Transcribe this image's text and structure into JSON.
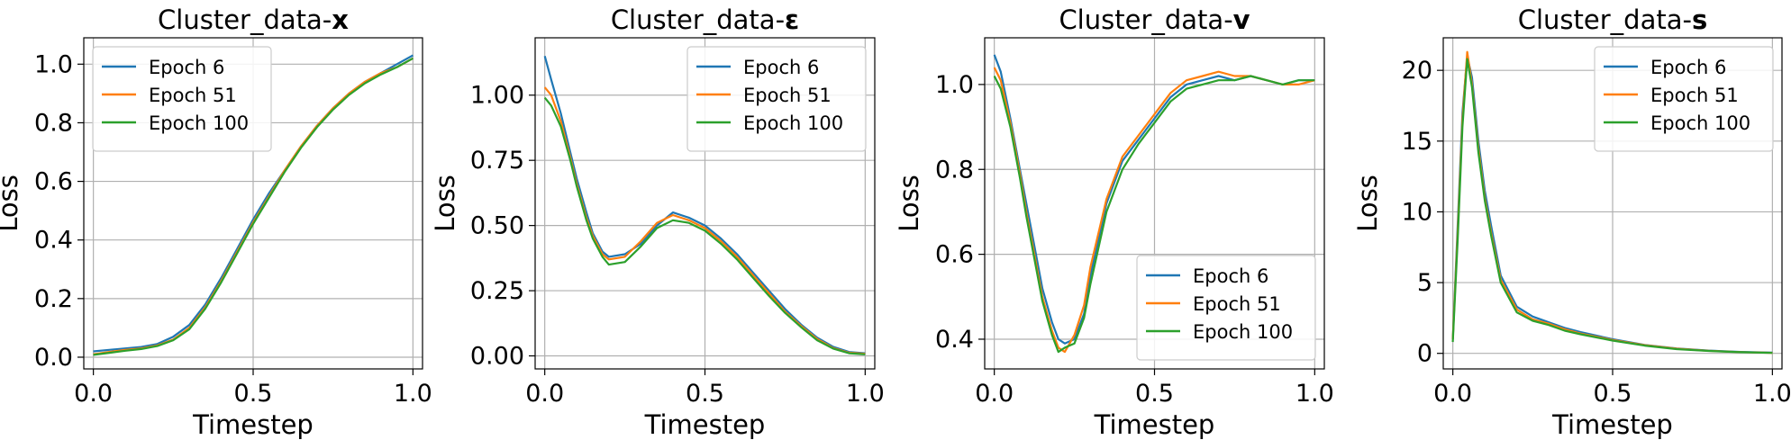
{
  "chart_data": [
    {
      "type": "line",
      "title_prefix": "Cluster_data-",
      "title_symbol": "x",
      "xlabel": "Timestep",
      "ylabel": "Loss",
      "xlim": [
        -0.03,
        1.03
      ],
      "ylim": [
        -0.04,
        1.09
      ],
      "xticks": [
        0.0,
        0.5,
        1.0
      ],
      "xtick_labels": [
        "0.0",
        "0.5",
        "1.0"
      ],
      "yticks": [
        0.0,
        0.2,
        0.4,
        0.6,
        0.8,
        1.0
      ],
      "ytick_labels": [
        "0.0",
        "0.2",
        "0.4",
        "0.6",
        "0.8",
        "1.0"
      ],
      "grid": true,
      "legend_position": "top-left",
      "x": [
        0,
        0.05,
        0.1,
        0.15,
        0.2,
        0.25,
        0.3,
        0.35,
        0.4,
        0.45,
        0.5,
        0.55,
        0.6,
        0.65,
        0.7,
        0.75,
        0.8,
        0.85,
        0.9,
        0.95,
        1.0
      ],
      "series": [
        {
          "name": "Epoch 6",
          "color": "#1f77b4",
          "values": [
            0.02,
            0.025,
            0.03,
            0.035,
            0.045,
            0.07,
            0.11,
            0.18,
            0.27,
            0.37,
            0.47,
            0.56,
            0.64,
            0.72,
            0.79,
            0.85,
            0.9,
            0.94,
            0.97,
            1.0,
            1.03
          ]
        },
        {
          "name": "Epoch 51",
          "color": "#ff7f0e",
          "values": [
            0.01,
            0.018,
            0.025,
            0.03,
            0.04,
            0.06,
            0.1,
            0.17,
            0.26,
            0.36,
            0.46,
            0.55,
            0.64,
            0.72,
            0.79,
            0.85,
            0.9,
            0.94,
            0.97,
            0.99,
            1.02
          ]
        },
        {
          "name": "Epoch 100",
          "color": "#2ca02c",
          "values": [
            0.008,
            0.015,
            0.022,
            0.028,
            0.038,
            0.058,
            0.095,
            0.165,
            0.255,
            0.355,
            0.455,
            0.545,
            0.635,
            0.715,
            0.785,
            0.845,
            0.895,
            0.935,
            0.965,
            0.99,
            1.02
          ]
        }
      ]
    },
    {
      "type": "line",
      "title_prefix": "Cluster_data-",
      "title_symbol": "ε",
      "xlabel": "Timestep",
      "ylabel": "Loss",
      "xlim": [
        -0.03,
        1.03
      ],
      "ylim": [
        -0.05,
        1.22
      ],
      "xticks": [
        0.0,
        0.5,
        1.0
      ],
      "xtick_labels": [
        "0.0",
        "0.5",
        "1.0"
      ],
      "yticks": [
        0.0,
        0.25,
        0.5,
        0.75,
        1.0
      ],
      "ytick_labels": [
        "0.00",
        "0.25",
        "0.50",
        "0.75",
        "1.00"
      ],
      "grid": true,
      "legend_position": "top-right",
      "x": [
        0,
        0.02,
        0.05,
        0.08,
        0.1,
        0.13,
        0.15,
        0.18,
        0.2,
        0.25,
        0.3,
        0.35,
        0.4,
        0.45,
        0.5,
        0.55,
        0.6,
        0.65,
        0.7,
        0.75,
        0.8,
        0.85,
        0.9,
        0.95,
        1.0
      ],
      "series": [
        {
          "name": "Epoch 6",
          "color": "#1f77b4",
          "values": [
            1.15,
            1.06,
            0.93,
            0.78,
            0.68,
            0.55,
            0.47,
            0.4,
            0.38,
            0.39,
            0.43,
            0.5,
            0.55,
            0.53,
            0.5,
            0.45,
            0.39,
            0.32,
            0.25,
            0.18,
            0.12,
            0.07,
            0.035,
            0.015,
            0.01
          ]
        },
        {
          "name": "Epoch 51",
          "color": "#ff7f0e",
          "values": [
            1.03,
            1.0,
            0.9,
            0.76,
            0.66,
            0.53,
            0.46,
            0.39,
            0.37,
            0.38,
            0.44,
            0.51,
            0.54,
            0.52,
            0.49,
            0.44,
            0.38,
            0.31,
            0.24,
            0.17,
            0.115,
            0.065,
            0.03,
            0.012,
            0.008
          ]
        },
        {
          "name": "Epoch 100",
          "color": "#2ca02c",
          "values": [
            0.99,
            0.96,
            0.88,
            0.75,
            0.65,
            0.52,
            0.45,
            0.38,
            0.35,
            0.36,
            0.42,
            0.49,
            0.52,
            0.51,
            0.48,
            0.43,
            0.37,
            0.3,
            0.23,
            0.165,
            0.11,
            0.06,
            0.028,
            0.01,
            0.006
          ]
        }
      ]
    },
    {
      "type": "line",
      "title_prefix": "Cluster_data-",
      "title_symbol": "v",
      "xlabel": "Timestep",
      "ylabel": "Loss",
      "xlim": [
        -0.03,
        1.03
      ],
      "ylim": [
        0.33,
        1.11
      ],
      "xticks": [
        0.0,
        0.5,
        1.0
      ],
      "xtick_labels": [
        "0.0",
        "0.5",
        "1.0"
      ],
      "yticks": [
        0.4,
        0.6,
        0.8,
        1.0
      ],
      "ytick_labels": [
        "0.4",
        "0.6",
        "0.8",
        "1.0"
      ],
      "grid": true,
      "legend_position": "bottom-right",
      "x": [
        0,
        0.02,
        0.05,
        0.08,
        0.1,
        0.13,
        0.15,
        0.18,
        0.2,
        0.22,
        0.25,
        0.28,
        0.3,
        0.35,
        0.4,
        0.45,
        0.5,
        0.55,
        0.6,
        0.65,
        0.7,
        0.75,
        0.8,
        0.85,
        0.9,
        0.95,
        1.0
      ],
      "series": [
        {
          "name": "Epoch 6",
          "color": "#1f77b4",
          "values": [
            1.07,
            1.03,
            0.92,
            0.8,
            0.72,
            0.6,
            0.52,
            0.44,
            0.4,
            0.39,
            0.4,
            0.46,
            0.55,
            0.72,
            0.82,
            0.87,
            0.92,
            0.97,
            1.0,
            1.01,
            1.02,
            1.01,
            1.02,
            1.01,
            1.0,
            1.01,
            1.01
          ]
        },
        {
          "name": "Epoch 51",
          "color": "#ff7f0e",
          "values": [
            1.04,
            1.01,
            0.91,
            0.79,
            0.7,
            0.58,
            0.5,
            0.42,
            0.38,
            0.37,
            0.41,
            0.48,
            0.57,
            0.73,
            0.83,
            0.88,
            0.93,
            0.98,
            1.01,
            1.02,
            1.03,
            1.02,
            1.02,
            1.01,
            1.0,
            1.0,
            1.01
          ]
        },
        {
          "name": "Epoch 100",
          "color": "#2ca02c",
          "values": [
            1.02,
            0.99,
            0.9,
            0.78,
            0.69,
            0.57,
            0.49,
            0.41,
            0.37,
            0.38,
            0.39,
            0.45,
            0.53,
            0.7,
            0.8,
            0.86,
            0.91,
            0.96,
            0.99,
            1.0,
            1.01,
            1.01,
            1.02,
            1.01,
            1.0,
            1.01,
            1.01
          ]
        }
      ]
    },
    {
      "type": "line",
      "title_prefix": "Cluster_data-",
      "title_symbol": "s",
      "xlabel": "Timestep",
      "ylabel": "Loss",
      "xlim": [
        -0.03,
        1.03
      ],
      "ylim": [
        -1.1,
        22.3
      ],
      "xticks": [
        0.0,
        0.5,
        1.0
      ],
      "xtick_labels": [
        "0.0",
        "0.5",
        "1.0"
      ],
      "yticks": [
        0,
        5,
        10,
        15,
        20
      ],
      "ytick_labels": [
        "0",
        "5",
        "10",
        "15",
        "20"
      ],
      "grid": true,
      "legend_position": "top-right",
      "x": [
        0,
        0.015,
        0.03,
        0.045,
        0.06,
        0.08,
        0.1,
        0.12,
        0.15,
        0.2,
        0.25,
        0.3,
        0.35,
        0.4,
        0.5,
        0.6,
        0.7,
        0.8,
        0.9,
        1.0
      ],
      "series": [
        {
          "name": "Epoch 6",
          "color": "#1f77b4",
          "values": [
            1.0,
            9.0,
            17.0,
            21.0,
            19.5,
            15.0,
            11.5,
            9.0,
            5.5,
            3.3,
            2.6,
            2.2,
            1.8,
            1.5,
            1.0,
            0.6,
            0.35,
            0.2,
            0.1,
            0.05
          ]
        },
        {
          "name": "Epoch 51",
          "color": "#ff7f0e",
          "values": [
            1.0,
            8.5,
            16.5,
            21.3,
            19.0,
            14.5,
            11.0,
            8.5,
            5.2,
            3.1,
            2.4,
            2.1,
            1.7,
            1.4,
            0.95,
            0.58,
            0.33,
            0.18,
            0.09,
            0.04
          ]
        },
        {
          "name": "Epoch 100",
          "color": "#2ca02c",
          "values": [
            0.8,
            8.0,
            16.0,
            20.8,
            18.8,
            14.2,
            10.8,
            8.3,
            5.0,
            2.9,
            2.3,
            2.0,
            1.6,
            1.35,
            0.9,
            0.55,
            0.3,
            0.17,
            0.08,
            0.03
          ]
        }
      ]
    }
  ]
}
